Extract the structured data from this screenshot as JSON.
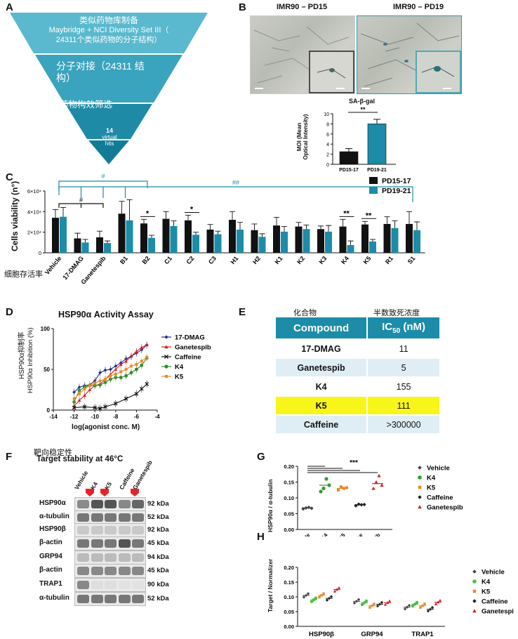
{
  "panels": {
    "A": "A",
    "B": "B",
    "C": "C",
    "D": "D",
    "E": "E",
    "F": "F",
    "G": "G",
    "H": "H"
  },
  "funnel": {
    "tier1_line1": "类似药物库制备",
    "tier1_line2": "Maybridge + NCI Diversity Set III（",
    "tier1_line3": "24311个类似药物的分子结构）",
    "tier2_line1": "分子对接（24311 结",
    "tier2_line2": "构）",
    "tier3": "药物构效筛选",
    "tier4_count": "14",
    "tier4_line1": "virtual",
    "tier4_line2": "hits",
    "colors": {
      "tier1": "#5ab9ce",
      "tier2": "#3aa3bd",
      "tier3": "#1f8aa6",
      "tier4": "#127c98"
    }
  },
  "micrographs": {
    "left_title": "IMR90 – PD15",
    "right_title": "IMR90 – PD19"
  },
  "sagal": {
    "title": "SA-β-gal",
    "ylabel_line1": "MOI (Mean",
    "ylabel_line2": "Optical Intensity)",
    "sig": "**",
    "chart_data": {
      "type": "bar",
      "categories": [
        "PD15-17",
        "PD19-21"
      ],
      "values": [
        2.5,
        8.0
      ],
      "errors": [
        0.6,
        0.9
      ],
      "ylim": [
        0,
        10
      ],
      "yticks": [
        "0",
        "2",
        "4",
        "6",
        "8",
        "10"
      ],
      "colors": [
        "#111111",
        "#1c8ca8"
      ]
    }
  },
  "viability": {
    "ylabel": "Cells viability (n°)",
    "zh_label": "细胞存活率",
    "legend": [
      {
        "name": "PD15-17",
        "color": "#111111"
      },
      {
        "name": "PD19-21",
        "color": "#1c8ca8"
      }
    ],
    "yticks": [
      "0",
      "2×10⁴",
      "4×10⁴",
      "6×10⁴"
    ],
    "hash1": "#",
    "hash2": "##",
    "hash3": "#",
    "chart_data": {
      "type": "bar",
      "categories": [
        "Vehicle",
        "17-DMAG",
        "Ganetespib",
        "B1",
        "B2",
        "C1",
        "C2",
        "C3",
        "H1",
        "H2",
        "K1",
        "K2",
        "K3",
        "K4",
        "K5",
        "R1",
        "S1"
      ],
      "series": [
        {
          "name": "PD15-17",
          "values": [
            34000,
            14000,
            15000,
            38000,
            28500,
            33000,
            31500,
            22500,
            32000,
            22000,
            26500,
            25500,
            23000,
            25500,
            27500,
            28000,
            28000
          ]
        },
        {
          "name": "PD19-21",
          "values": [
            35000,
            10000,
            9500,
            31500,
            14500,
            26000,
            17500,
            18000,
            22500,
            15500,
            20500,
            23000,
            20500,
            7500,
            11000,
            24000,
            22000
          ]
        }
      ],
      "errors": [
        [
          8000,
          5000,
          6000,
          12000,
          4000,
          7000,
          5000,
          5000,
          8000,
          6000,
          8000,
          4000,
          3000,
          7000,
          3000,
          7000,
          12000
        ],
        [
          9000,
          3000,
          2000,
          20000,
          2500,
          5000,
          2500,
          3000,
          7000,
          3000,
          5000,
          4000,
          6000,
          4000,
          2000,
          7000,
          8000
        ]
      ],
      "ylim": [
        0,
        60000
      ],
      "sig_marks": [
        {
          "category": "B2",
          "label": "*"
        },
        {
          "category": "C2",
          "label": "*"
        },
        {
          "category": "K4",
          "label": "**"
        },
        {
          "category": "K5",
          "label": "**"
        }
      ]
    }
  },
  "hsp90_assay": {
    "title": "HSP90α Activity Assay",
    "ylabel_zh": "HSP90α抑制率",
    "ylabel": "HSP90α Inhibition (%)",
    "xlabel": "log(agonist conc. M)",
    "chart_data": {
      "type": "line",
      "xlim": [
        -14,
        -4
      ],
      "ylim": [
        0,
        100
      ],
      "xticks": [
        -14,
        -12,
        -10,
        -8,
        -6,
        -4
      ],
      "yticks": [
        0,
        50,
        100
      ],
      "series": [
        {
          "name": "17-DMAG",
          "color": "#1a2a8a",
          "marker": "diamond",
          "x": [
            -12,
            -11.5,
            -11,
            -10.5,
            -10,
            -9.5,
            -9,
            -8.5,
            -8,
            -7.5,
            -7,
            -6.5,
            -6,
            -5.5,
            -5
          ],
          "y": [
            22,
            28,
            30,
            31,
            36,
            46,
            49,
            50,
            54,
            58,
            63,
            66,
            70,
            74,
            80
          ]
        },
        {
          "name": "Ganetespib",
          "color": "#d32020",
          "marker": "triangle",
          "x": [
            -12,
            -11.5,
            -11,
            -10.5,
            -10,
            -9.5,
            -9,
            -8.5,
            -8,
            -7.5,
            -7,
            -6.5,
            -6,
            -5.5,
            -5
          ],
          "y": [
            5,
            12,
            18,
            25,
            30,
            32,
            38,
            44,
            50,
            56,
            60,
            66,
            72,
            77,
            80
          ]
        },
        {
          "name": "Caffeine",
          "color": "#111111",
          "marker": "x",
          "x": [
            -12,
            -11,
            -10,
            -9.5,
            -9,
            -8,
            -7,
            -6,
            -5.5,
            -5
          ],
          "y": [
            3,
            4,
            3,
            2,
            4,
            8,
            14,
            20,
            26,
            32
          ]
        },
        {
          "name": "K4",
          "color": "#2e8b2e",
          "marker": "circle",
          "x": [
            -12,
            -11.5,
            -11,
            -10.5,
            -10,
            -9.5,
            -9,
            -8.5,
            -8,
            -7.5,
            -7,
            -6.5,
            -6,
            -5.5,
            -5
          ],
          "y": [
            10,
            24,
            28,
            30,
            30,
            31,
            34,
            38,
            40,
            40,
            42,
            46,
            50,
            55,
            64
          ]
        },
        {
          "name": "K5",
          "color": "#e88a2a",
          "marker": "square",
          "x": [
            -12,
            -11.5,
            -11,
            -10.5,
            -10,
            -9.5,
            -9,
            -8.5,
            -8,
            -7.5,
            -7,
            -6.5,
            -6,
            -5.5,
            -5
          ],
          "y": [
            14,
            20,
            26,
            30,
            33,
            36,
            38,
            42,
            44,
            47,
            50,
            54,
            56,
            60,
            65
          ]
        }
      ]
    }
  },
  "ic50": {
    "zh_compound": "化合物",
    "zh_ic50": "半数致死浓度",
    "h_compound": "Compound",
    "h_ic50_main": "IC",
    "h_ic50_sub": "50",
    "h_ic50_unit": " (nM)",
    "rows": [
      {
        "compound": "17-DMAG",
        "value": "11"
      },
      {
        "compound": "Ganetespib",
        "value": "5"
      },
      {
        "compound": "K4",
        "value": "155"
      },
      {
        "compound": "K5",
        "value": "111"
      },
      {
        "compound": "Caffeine",
        "value": ">300000"
      }
    ],
    "highlight_color": "#f7f51a"
  },
  "western": {
    "zh_title": "靶向稳定性",
    "title": "Target stability at 46°C",
    "lanes": [
      "Vehicle",
      "K4",
      "K5",
      "Caffeine",
      "Ganetespib"
    ],
    "rows": [
      {
        "protein": "HSP90α",
        "kda": "92 kDa"
      },
      {
        "protein": "α-tubulin",
        "kda": "52 kDa"
      },
      {
        "protein": "HSP90β",
        "kda": "92 kDa"
      },
      {
        "protein": "β-actin",
        "kda": "45 kDa"
      },
      {
        "protein": "GRP94",
        "kda": "94 kDa"
      },
      {
        "protein": "β-actin",
        "kda": "45 kDa"
      },
      {
        "protein": "TRAP1",
        "kda": "90 kDa"
      },
      {
        "protein": "α-tubulin",
        "kda": "52 kDa"
      }
    ]
  },
  "panel_g": {
    "ylabel": "HSP90α / α-tubulin",
    "sig": "***",
    "chart_data": {
      "type": "scatter",
      "ylim": [
        0,
        0.2
      ],
      "yticks": [
        "0.00",
        "0.05",
        "0.10",
        "0.15",
        "0.20"
      ],
      "categories": [
        "Vehicle",
        "K4",
        "K5",
        "Caffeine",
        "Ganetespib"
      ],
      "means": [
        0.068,
        0.14,
        0.13,
        0.078,
        0.145
      ],
      "points": [
        [
          0.065,
          0.068,
          0.07,
          0.067
        ],
        [
          0.12,
          0.13,
          0.16,
          0.14
        ],
        [
          0.125,
          0.135,
          0.13,
          0.132
        ],
        [
          0.075,
          0.08,
          0.078,
          0.079
        ],
        [
          0.13,
          0.15,
          0.17,
          0.14
        ]
      ],
      "colors": [
        "#444444",
        "#2e9e2e",
        "#e88a2a",
        "#222222",
        "#d32020"
      ],
      "markers": [
        "diamond",
        "circle",
        "square",
        "diamond",
        "triangle"
      ],
      "legend": [
        "Vehicle",
        "K4",
        "K5",
        "Caffeine",
        "Ganetespib"
      ]
    }
  },
  "panel_h": {
    "ylabel": "Target / Normalizer",
    "chart_data": {
      "type": "scatter",
      "ylim": [
        0,
        0.2
      ],
      "yticks": [
        "0.00",
        "0.05",
        "0.10",
        "0.15",
        "0.20"
      ],
      "groups": [
        "HSP90β",
        "GRP94",
        "TRAP1"
      ],
      "series": [
        "Vehicle",
        "K4",
        "K5",
        "Caffeine",
        "Ganetespib"
      ],
      "colors": [
        "#444444",
        "#49c23a",
        "#e88a2a",
        "#222222",
        "#d32020"
      ],
      "means": [
        [
          0.105,
          0.09,
          0.105,
          0.095,
          0.125
        ],
        [
          0.085,
          0.08,
          0.07,
          0.075,
          0.08
        ],
        [
          0.065,
          0.075,
          0.07,
          0.058,
          0.082
        ]
      ],
      "legend": [
        "Vehicle",
        "K4",
        "K5",
        "Caffeine",
        "Ganetespib"
      ]
    }
  }
}
